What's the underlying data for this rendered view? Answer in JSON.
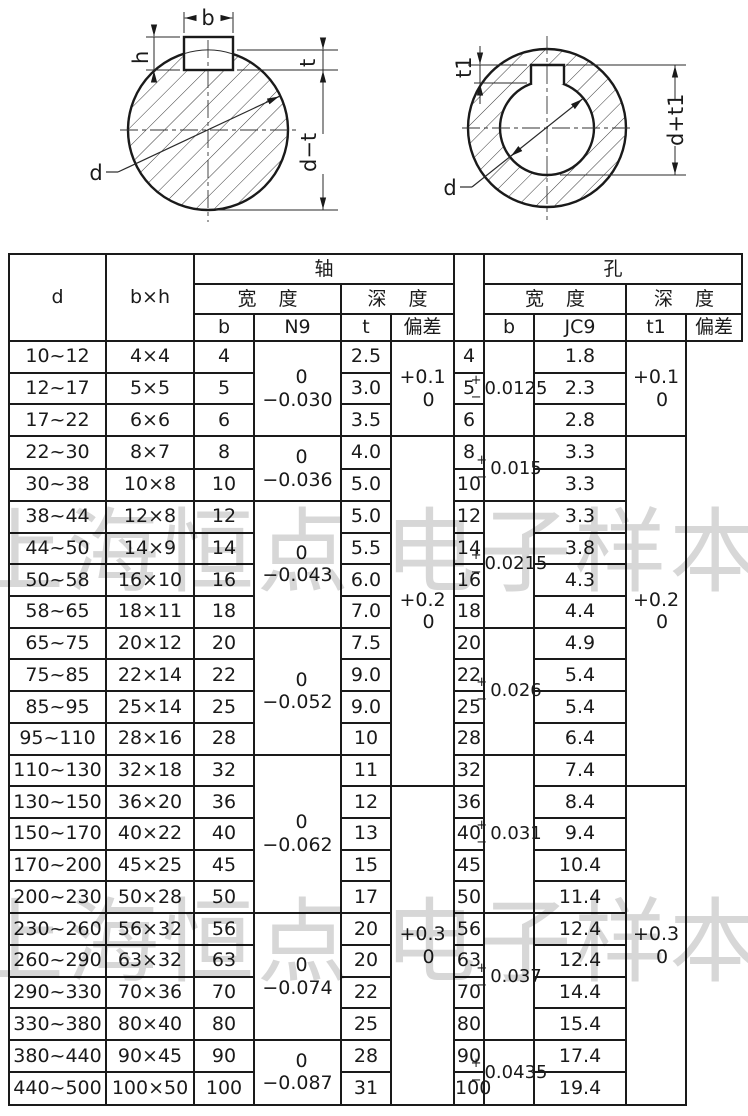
{
  "page": {
    "background": "#ffffff",
    "ink": "#1a1a1a"
  },
  "watermark": {
    "text": "上海恒点 电子样本",
    "color": "#d7d7d7"
  },
  "drawings": {
    "shaft": {
      "description": "shaft cross-section with key",
      "labels": {
        "b": "b",
        "h": "h",
        "t": "t",
        "d_minus_t": "d−t",
        "d": "d"
      }
    },
    "hub": {
      "description": "hub bore cross-section with keyway",
      "labels": {
        "t1": "t1",
        "d_plus_t1": "d+t1",
        "d": "d"
      }
    }
  },
  "table": {
    "pm": {
      "plus": "+",
      "minus": "−"
    },
    "headers": {
      "d": "d",
      "bxh": "b×h",
      "shaft": "轴",
      "hub": "孔",
      "width": "宽 度",
      "depth": "深 度",
      "shaft_b": "b",
      "shaft_fit": "N9",
      "shaft_t": "t",
      "shaft_dev": "偏差",
      "hub_b": "b",
      "hub_fit": "JC9",
      "hub_t1": "t1",
      "hub_dev": "偏差"
    },
    "rows": [
      {
        "d": "10~12",
        "bxh": "4×4",
        "b": "4",
        "t": "2.5",
        "t1": "1.8"
      },
      {
        "d": "12~17",
        "bxh": "5×5",
        "b": "5",
        "t": "3.0",
        "t1": "2.3"
      },
      {
        "d": "17~22",
        "bxh": "6×6",
        "b": "6",
        "t": "3.5",
        "t1": "2.8"
      },
      {
        "d": "22~30",
        "bxh": "8×7",
        "b": "8",
        "t": "4.0",
        "t1": "3.3"
      },
      {
        "d": "30~38",
        "bxh": "10×8",
        "b": "10",
        "t": "5.0",
        "t1": "3.3"
      },
      {
        "d": "38~44",
        "bxh": "12×8",
        "b": "12",
        "t": "5.0",
        "t1": "3.3"
      },
      {
        "d": "44~50",
        "bxh": "14×9",
        "b": "14",
        "t": "5.5",
        "t1": "3.8"
      },
      {
        "d": "50~58",
        "bxh": "16×10",
        "b": "16",
        "t": "6.0",
        "t1": "4.3"
      },
      {
        "d": "58~65",
        "bxh": "18×11",
        "b": "18",
        "t": "7.0",
        "t1": "4.4"
      },
      {
        "d": "65~75",
        "bxh": "20×12",
        "b": "20",
        "t": "7.5",
        "t1": "4.9"
      },
      {
        "d": "75~85",
        "bxh": "22×14",
        "b": "22",
        "t": "9.0",
        "t1": "5.4"
      },
      {
        "d": "85~95",
        "bxh": "25×14",
        "b": "25",
        "t": "9.0",
        "t1": "5.4"
      },
      {
        "d": "95~110",
        "bxh": "28×16",
        "b": "28",
        "t": "10",
        "t1": "6.4"
      },
      {
        "d": "110~130",
        "bxh": "32×18",
        "b": "32",
        "t": "11",
        "t1": "7.4"
      },
      {
        "d": "130~150",
        "bxh": "36×20",
        "b": "36",
        "t": "12",
        "t1": "8.4"
      },
      {
        "d": "150~170",
        "bxh": "40×22",
        "b": "40",
        "t": "13",
        "t1": "9.4"
      },
      {
        "d": "170~200",
        "bxh": "45×25",
        "b": "45",
        "t": "15",
        "t1": "10.4"
      },
      {
        "d": "200~230",
        "bxh": "50×28",
        "b": "50",
        "t": "17",
        "t1": "11.4"
      },
      {
        "d": "230~260",
        "bxh": "56×32",
        "b": "56",
        "t": "20",
        "t1": "12.4"
      },
      {
        "d": "260~290",
        "bxh": "63×32",
        "b": "63",
        "t": "20",
        "t1": "12.4"
      },
      {
        "d": "290~330",
        "bxh": "70×36",
        "b": "70",
        "t": "22",
        "t1": "14.4"
      },
      {
        "d": "330~380",
        "bxh": "80×40",
        "b": "80",
        "t": "25",
        "t1": "15.4"
      },
      {
        "d": "380~440",
        "bxh": "90×45",
        "b": "90",
        "t": "28",
        "t1": "17.4"
      },
      {
        "d": "440~500",
        "bxh": "100×50",
        "b": "100",
        "t": "31",
        "t1": "19.4"
      }
    ],
    "fit_groups": [
      {
        "start": 0,
        "span": 3,
        "shaft_lines": [
          "0",
          "−0.030"
        ],
        "hub_value": "0.0125"
      },
      {
        "start": 3,
        "span": 2,
        "shaft_lines": [
          "0",
          "−0.036"
        ],
        "hub_value": "0.015"
      },
      {
        "start": 5,
        "span": 4,
        "shaft_lines": [
          "0",
          "−0.043"
        ],
        "hub_value": "0.0215"
      },
      {
        "start": 9,
        "span": 4,
        "shaft_lines": [
          "0",
          "−0.052"
        ],
        "hub_value": "0.026"
      },
      {
        "start": 13,
        "span": 5,
        "shaft_lines": [
          "0",
          "−0.062"
        ],
        "hub_value": "0.031"
      },
      {
        "start": 18,
        "span": 4,
        "shaft_lines": [
          "0",
          "−0.074"
        ],
        "hub_value": "0.037"
      },
      {
        "start": 22,
        "span": 2,
        "shaft_lines": [
          "0",
          "−0.087"
        ],
        "hub_value": "0.0435"
      }
    ],
    "deviation_groups": [
      {
        "start": 0,
        "span": 3,
        "lines": [
          "+0.1",
          "0"
        ]
      },
      {
        "start": 3,
        "span": 11,
        "lines": [
          "+0.2",
          "0"
        ]
      },
      {
        "start": 14,
        "span": 10,
        "lines": [
          "+0.3",
          "0"
        ]
      }
    ]
  }
}
